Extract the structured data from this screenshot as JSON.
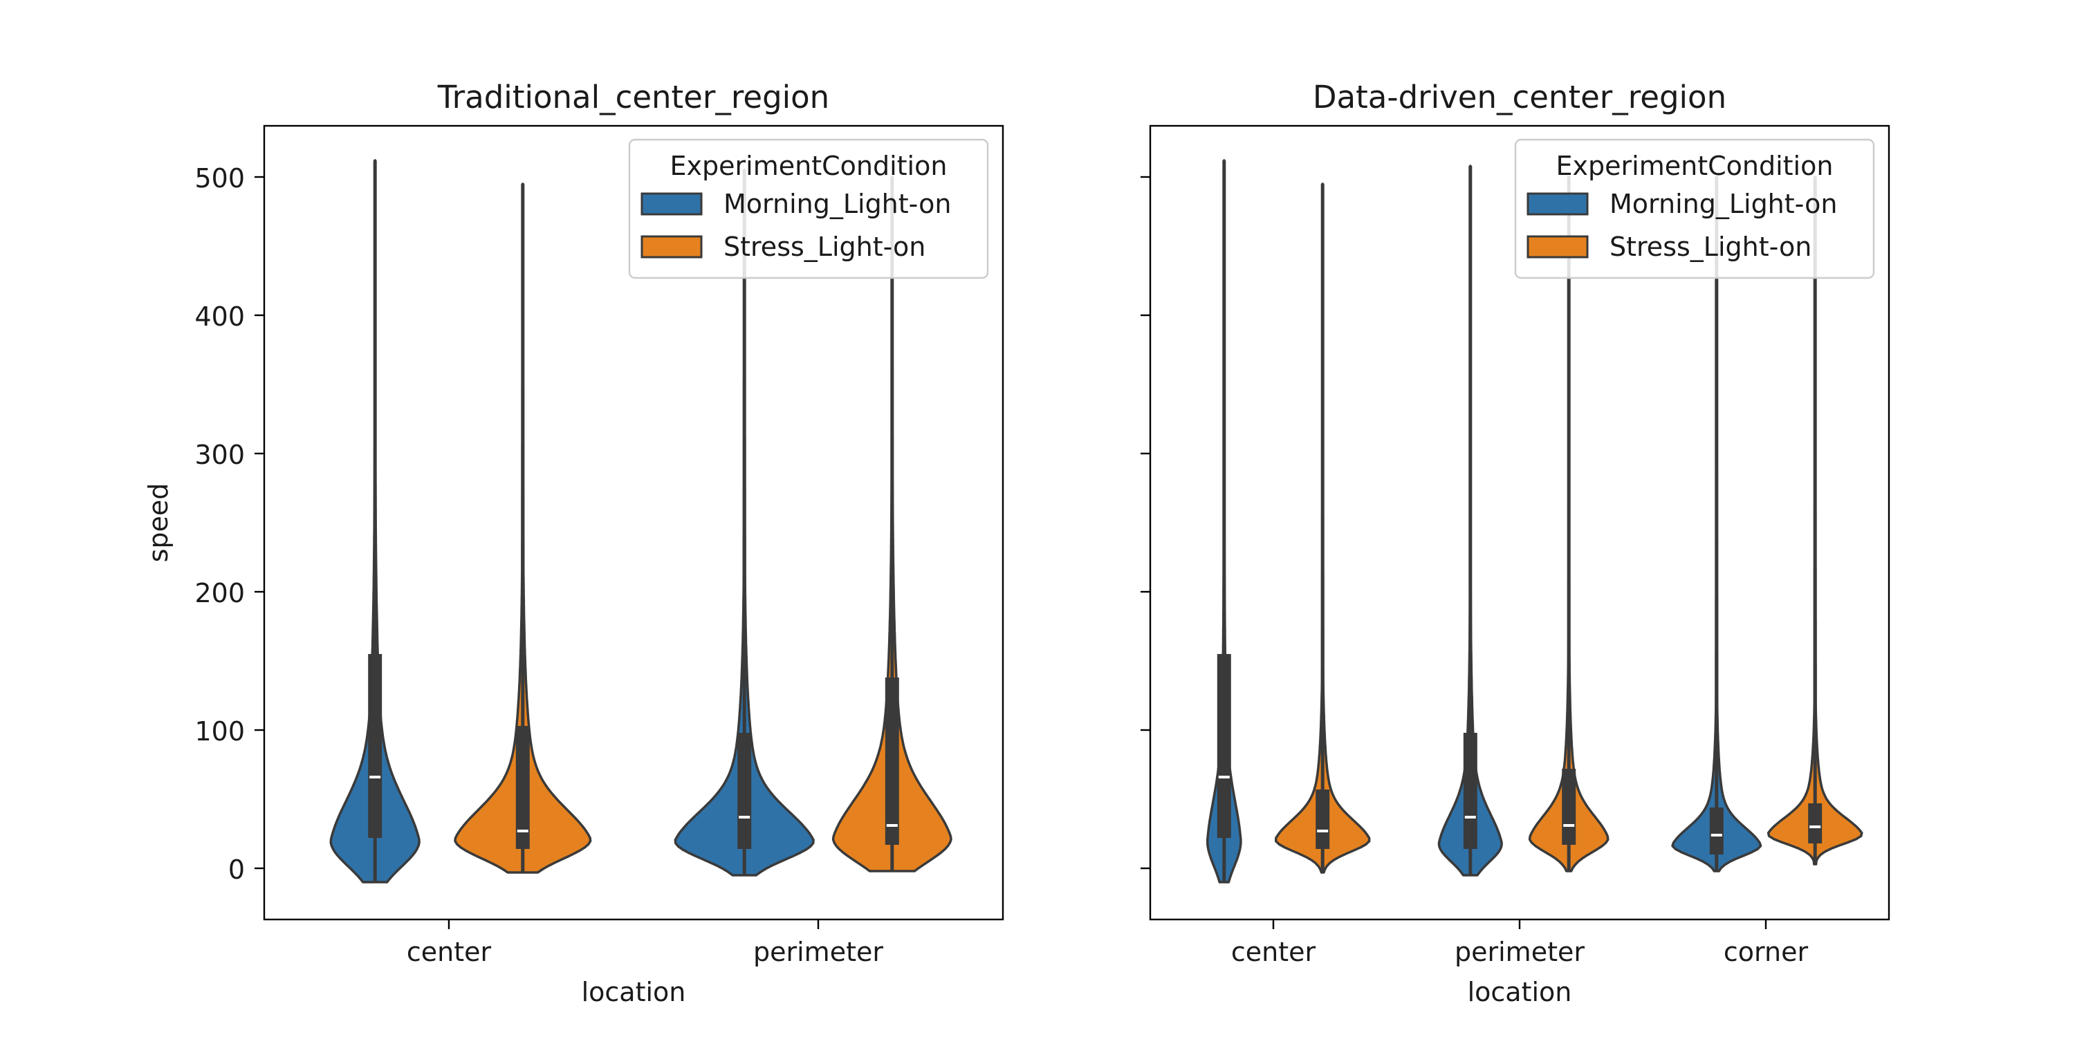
{
  "figure": {
    "shared_ylabel": "speed",
    "legend_title": "ExperimentCondition",
    "colors": {
      "Morning_Light-on": "#2f72a8",
      "Stress_Light-on": "#e5821f",
      "edge": "#3a3a3a"
    }
  },
  "chart_data": [
    {
      "type": "violin",
      "title": "Traditional_center_region",
      "xlabel": "location",
      "ylabel": "speed",
      "categories": [
        "center",
        "perimeter"
      ],
      "ylim": [
        -37,
        537
      ],
      "yticks": [
        0,
        100,
        200,
        300,
        400,
        500
      ],
      "grid": false,
      "legend": {
        "title": "ExperimentCondition",
        "placement": "upper right",
        "entries": [
          "Morning_Light-on",
          "Stress_Light-on"
        ]
      },
      "series": [
        {
          "name": "Morning_Light-on",
          "violins": [
            {
              "category": "center",
              "min": -10,
              "max": 512,
              "q1": 22,
              "median": 66,
              "q3": 155,
              "peak": 20,
              "hw": 0.6
            },
            {
              "category": "perimeter",
              "min": -5,
              "max": 505,
              "q1": 14,
              "median": 37,
              "q3": 98,
              "peak": 20,
              "hw": 0.94
            }
          ]
        },
        {
          "name": "Stress_Light-on",
          "violins": [
            {
              "category": "center",
              "min": -3,
              "max": 495,
              "q1": 14,
              "median": 27,
              "q3": 103,
              "peak": 21,
              "hw": 0.92
            },
            {
              "category": "perimeter",
              "min": -2,
              "max": 500,
              "q1": 17,
              "median": 31,
              "q3": 138,
              "peak": 22,
              "hw": 0.8
            }
          ]
        }
      ]
    },
    {
      "type": "violin",
      "title": "Data-driven_center_region",
      "xlabel": "location",
      "ylabel": "",
      "categories": [
        "center",
        "perimeter",
        "corner"
      ],
      "ylim": [
        -37,
        537
      ],
      "yticks": [
        0,
        100,
        200,
        300,
        400,
        500
      ],
      "grid": false,
      "legend": {
        "title": "ExperimentCondition",
        "placement": "upper right",
        "entries": [
          "Morning_Light-on",
          "Stress_Light-on"
        ]
      },
      "series": [
        {
          "name": "Morning_Light-on",
          "violins": [
            {
              "category": "center",
              "min": -10,
              "max": 512,
              "q1": 22,
              "median": 66,
              "q3": 155,
              "peak": 20,
              "hw": 0.34
            },
            {
              "category": "perimeter",
              "min": -5,
              "max": 508,
              "q1": 14,
              "median": 37,
              "q3": 98,
              "peak": 18,
              "hw": 0.64
            },
            {
              "category": "corner",
              "min": -2,
              "max": 500,
              "q1": 10,
              "median": 24,
              "q3": 44,
              "peak": 17,
              "hw": 0.9
            }
          ]
        },
        {
          "name": "Stress_Light-on",
          "violins": [
            {
              "category": "center",
              "min": -3,
              "max": 495,
              "q1": 14,
              "median": 27,
              "q3": 57,
              "peak": 21,
              "hw": 0.96
            },
            {
              "category": "perimeter",
              "min": -2,
              "max": 500,
              "q1": 17,
              "median": 31,
              "q3": 72,
              "peak": 22,
              "hw": 0.8
            },
            {
              "category": "corner",
              "min": 3,
              "max": 500,
              "q1": 18,
              "median": 30,
              "q3": 47,
              "peak": 25,
              "hw": 0.96
            }
          ]
        }
      ]
    }
  ]
}
